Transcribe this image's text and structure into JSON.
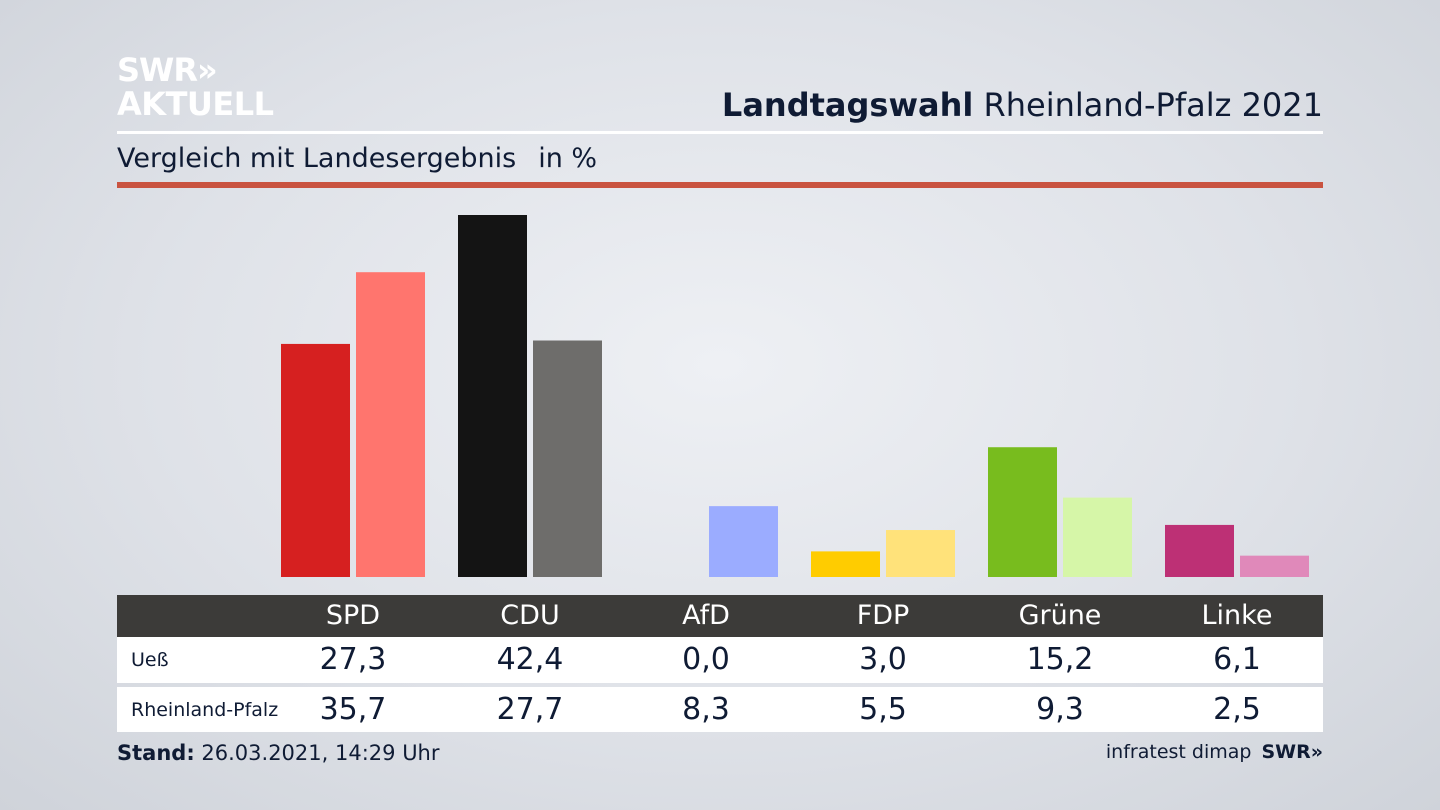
{
  "header": {
    "logo_line1": "SWR»",
    "logo_line2": "AKTUELL",
    "title_bold": "Landtagswahl",
    "title_rest": "Rheinland-Pfalz 2021",
    "subtitle": "Vergleich mit Landesergebnis",
    "unit": "in %"
  },
  "chart_data": {
    "type": "bar",
    "categories": [
      "SPD",
      "CDU",
      "AfD",
      "FDP",
      "Grüne",
      "Linke"
    ],
    "series": [
      {
        "name": "Ueß",
        "values": [
          27.3,
          42.4,
          0.0,
          3.0,
          15.2,
          6.1
        ],
        "colors": [
          "#d62020",
          "#141414",
          "#9bacff",
          "#ffcc00",
          "#78bc1e",
          "#bd3075"
        ]
      },
      {
        "name": "Rheinland-Pfalz",
        "values": [
          35.7,
          27.7,
          8.3,
          5.5,
          9.3,
          2.5
        ],
        "colors": [
          "#ff756e",
          "#6e6d6b",
          "#9bacff",
          "#ffe27a",
          "#d6f6a8",
          "#e089ba"
        ]
      }
    ],
    "value_labels": [
      [
        "27,3",
        "42,4",
        "0,0",
        "3,0",
        "15,2",
        "6,1"
      ],
      [
        "35,7",
        "27,7",
        "8,3",
        "5,5",
        "9,3",
        "2,5"
      ]
    ],
    "ylim": [
      0,
      42.4
    ],
    "grid": false
  },
  "footer": {
    "stand_label": "Stand:",
    "stand_value": "26.03.2021, 14:29 Uhr",
    "source": "infratest dimap",
    "source_logo": "SWR»"
  },
  "colors": {
    "accent_rule": "#c95340",
    "table_header": "#3c3b39",
    "text": "#0f1b34"
  }
}
